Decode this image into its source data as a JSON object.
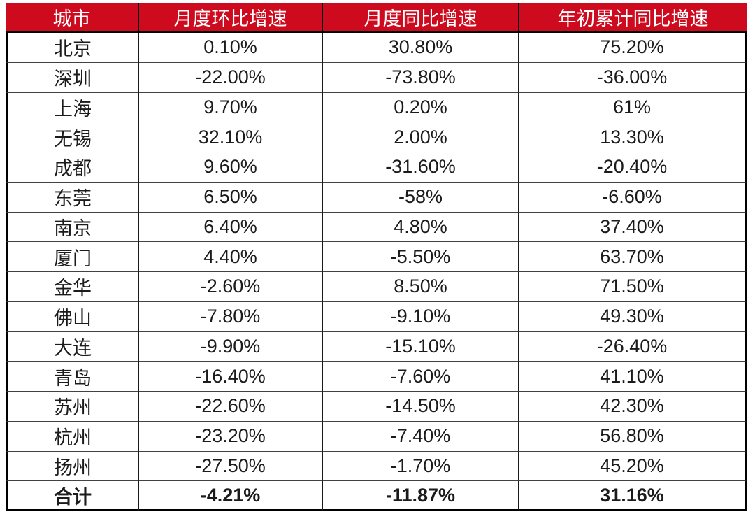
{
  "meta": {
    "page_background": "#ffffff"
  },
  "colors": {
    "header_bg": "#ce0b1e",
    "header_text": "#ffffff",
    "body_text": "#1b1b1b",
    "outer_border": "#000000",
    "row_separator": "#424242",
    "column_separator": "#1a1a1a"
  },
  "table": {
    "columns": [
      {
        "key": "city",
        "label": "城市"
      },
      {
        "key": "mom",
        "label": "月度环比增速"
      },
      {
        "key": "yoy",
        "label": "月度同比增速"
      },
      {
        "key": "ytd",
        "label": "年初累计同比增速"
      }
    ],
    "rows": [
      {
        "city": "北京",
        "mom": "0.10%",
        "yoy": "30.80%",
        "ytd": "75.20%",
        "is_total": false
      },
      {
        "city": "深圳",
        "mom": "-22.00%",
        "yoy": "-73.80%",
        "ytd": "-36.00%",
        "is_total": false
      },
      {
        "city": "上海",
        "mom": "9.70%",
        "yoy": "0.20%",
        "ytd": "61%",
        "is_total": false
      },
      {
        "city": "无锡",
        "mom": "32.10%",
        "yoy": "2.00%",
        "ytd": "13.30%",
        "is_total": false
      },
      {
        "city": "成都",
        "mom": "9.60%",
        "yoy": "-31.60%",
        "ytd": "-20.40%",
        "is_total": false
      },
      {
        "city": "东莞",
        "mom": "6.50%",
        "yoy": "-58%",
        "ytd": "-6.60%",
        "is_total": false
      },
      {
        "city": "南京",
        "mom": "6.40%",
        "yoy": "4.80%",
        "ytd": "37.40%",
        "is_total": false
      },
      {
        "city": "厦门",
        "mom": "4.40%",
        "yoy": "-5.50%",
        "ytd": "63.70%",
        "is_total": false
      },
      {
        "city": "金华",
        "mom": "-2.60%",
        "yoy": "8.50%",
        "ytd": "71.50%",
        "is_total": false
      },
      {
        "city": "佛山",
        "mom": "-7.80%",
        "yoy": "-9.10%",
        "ytd": "49.30%",
        "is_total": false
      },
      {
        "city": "大连",
        "mom": "-9.90%",
        "yoy": "-15.10%",
        "ytd": "-26.40%",
        "is_total": false
      },
      {
        "city": "青岛",
        "mom": "-16.40%",
        "yoy": "-7.60%",
        "ytd": "41.10%",
        "is_total": false
      },
      {
        "city": "苏州",
        "mom": "-22.60%",
        "yoy": "-14.50%",
        "ytd": "42.30%",
        "is_total": false
      },
      {
        "city": "杭州",
        "mom": "-23.20%",
        "yoy": "-7.40%",
        "ytd": "56.80%",
        "is_total": false
      },
      {
        "city": "扬州",
        "mom": "-27.50%",
        "yoy": "-1.70%",
        "ytd": "45.20%",
        "is_total": false
      },
      {
        "city": "合计",
        "mom": "-4.21%",
        "yoy": "-11.87%",
        "ytd": "31.16%",
        "is_total": true
      }
    ]
  },
  "chart_data": {
    "type": "table",
    "columns": [
      "城市",
      "月度环比增速",
      "月度同比增速",
      "年初累计同比增速"
    ],
    "rows": [
      [
        "北京",
        "0.10%",
        "30.80%",
        "75.20%"
      ],
      [
        "深圳",
        "-22.00%",
        "-73.80%",
        "-36.00%"
      ],
      [
        "上海",
        "9.70%",
        "0.20%",
        "61%"
      ],
      [
        "无锡",
        "32.10%",
        "2.00%",
        "13.30%"
      ],
      [
        "成都",
        "9.60%",
        "-31.60%",
        "-20.40%"
      ],
      [
        "东莞",
        "6.50%",
        "-58%",
        "-6.60%"
      ],
      [
        "南京",
        "6.40%",
        "4.80%",
        "37.40%"
      ],
      [
        "厦门",
        "4.40%",
        "-5.50%",
        "63.70%"
      ],
      [
        "金华",
        "-2.60%",
        "8.50%",
        "71.50%"
      ],
      [
        "佛山",
        "-7.80%",
        "-9.10%",
        "49.30%"
      ],
      [
        "大连",
        "-9.90%",
        "-15.10%",
        "-26.40%"
      ],
      [
        "青岛",
        "-16.40%",
        "-7.60%",
        "41.10%"
      ],
      [
        "苏州",
        "-22.60%",
        "-14.50%",
        "42.30%"
      ],
      [
        "杭州",
        "-23.20%",
        "-7.40%",
        "56.80%"
      ],
      [
        "扬州",
        "-27.50%",
        "-1.70%",
        "45.20%"
      ],
      [
        "合计",
        "-4.21%",
        "-11.87%",
        "31.16%"
      ]
    ],
    "title": "",
    "notes": "monthly MoM growth, monthly YoY growth, YTD cumulative YoY growth by city; last row is total"
  }
}
